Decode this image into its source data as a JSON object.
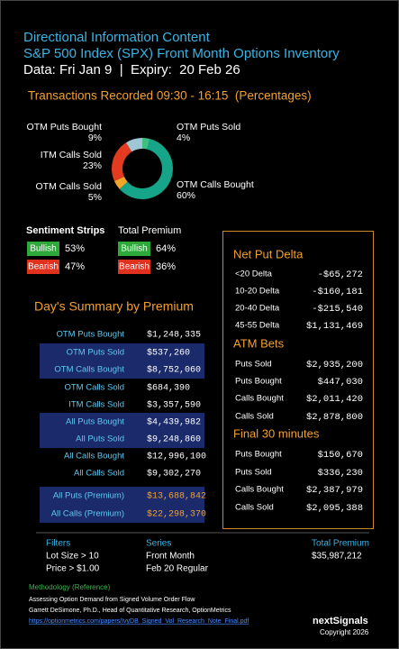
{
  "header": {
    "title": "Directional Information Content",
    "subtitle": "S&P 500 Index (SPX) Front Month Options Inventory",
    "data_line": "Data: Fri Jan 9  |  Expiry:  20 Feb 26"
  },
  "chart_data": {
    "type": "donut",
    "title": "Transactions Recorded 09:30 - 16:15  (Percentages)",
    "categories": [
      "OTM Puts Sold",
      "OTM Calls Bought",
      "OTM Calls Sold",
      "ITM Calls Sold",
      "OTM Puts Bought"
    ],
    "values": [
      4,
      60,
      5,
      23,
      9
    ],
    "value_labels": [
      "4%",
      "60%",
      "5%",
      "23%",
      "9%"
    ],
    "colors": [
      "#3fbf7f",
      "#17a589",
      "#f2a52b",
      "#e23b1f",
      "#9fc6d6"
    ]
  },
  "sentiment": {
    "title": "Sentiment Strips",
    "rows": [
      {
        "label": "Bullish",
        "value": "53%"
      },
      {
        "label": "Bearish",
        "value": "47%"
      }
    ]
  },
  "total_premium_strips": {
    "title": "Total Premium",
    "rows": [
      {
        "label": "Bullish",
        "value": "64%"
      },
      {
        "label": "Bearish",
        "value": "36%"
      }
    ]
  },
  "summary": {
    "title": "Day's Summary by Premium",
    "rows": [
      {
        "label": "OTM Puts Bought",
        "value": "$1,248,335",
        "highlight": false,
        "premium": false
      },
      {
        "label": "OTM Puts Sold",
        "value": "$537,260",
        "highlight": true,
        "premium": false
      },
      {
        "label": "OTM Calls Bought",
        "value": "$8,752,060",
        "highlight": true,
        "premium": false
      },
      {
        "label": "OTM Calls Sold",
        "value": "$684,390",
        "highlight": false,
        "premium": false
      },
      {
        "label": "ITM Calls Sold",
        "value": "$3,357,590",
        "highlight": false,
        "premium": false
      },
      {
        "label": "All Puts Bought",
        "value": "$4,439,982",
        "highlight": true,
        "premium": false
      },
      {
        "label": "All Puts Sold",
        "value": "$9,248,860",
        "highlight": true,
        "premium": false
      },
      {
        "label": "All Calls Bought",
        "value": "$12,996,100",
        "highlight": false,
        "premium": false
      },
      {
        "label": "All Calls Sold",
        "value": "$9,302,270",
        "highlight": false,
        "premium": false
      },
      {
        "label": "All Puts (Premium)",
        "value": "$13,688,842",
        "highlight": true,
        "premium": true
      },
      {
        "label": "All Calls (Premium)",
        "value": "$22,298,370",
        "highlight": true,
        "premium": true
      }
    ]
  },
  "panel": [
    {
      "title": "Net Put Delta",
      "rows": [
        {
          "label": "<20 Delta",
          "value": "-$65,272"
        },
        {
          "label": "10-20 Delta",
          "value": "-$160,181"
        },
        {
          "label": "20-40 Delta",
          "value": "-$215,540"
        },
        {
          "label": "45-55 Delta",
          "value": "$1,131,469"
        }
      ]
    },
    {
      "title": "ATM Bets",
      "rows": [
        {
          "label": "Puts Sold",
          "value": "$2,935,200"
        },
        {
          "label": "Puts Bought",
          "value": "$447,030"
        },
        {
          "label": "Calls Bought",
          "value": "$2,011,420"
        },
        {
          "label": "Calls Sold",
          "value": "$2,878,800"
        }
      ]
    },
    {
      "title": "Final 30 minutes",
      "rows": [
        {
          "label": "Puts Bought",
          "value": "$150,670"
        },
        {
          "label": "Puts Sold",
          "value": "$336,230"
        },
        {
          "label": "Calls Bought",
          "value": "$2,387,979"
        },
        {
          "label": "Calls Sold",
          "value": "$2,095,388"
        }
      ]
    }
  ],
  "footer": {
    "columns": [
      {
        "title": "Filters",
        "items": [
          "Lot Size > 10",
          "Price > $1.00"
        ]
      },
      {
        "title": "Series",
        "items": [
          "Front Month",
          "Feb 20 Regular"
        ]
      },
      {
        "title": "Total Premium",
        "items": [
          "$35,987,212"
        ]
      }
    ],
    "methodology": {
      "title": "Methodology (Reference)",
      "lines": [
        "Assessing Option Demand from Signed Volume Order Flow",
        "Garrett DeSimone, Ph.D., Head of Quantitative Research, OptionMetrics"
      ],
      "url": "https://optionmetrics.com/papers/IvyDB_Signed_Vol_Research_Note_Final.pdf"
    },
    "brand": "nextSignals",
    "copyright": "Copyright 2026"
  }
}
